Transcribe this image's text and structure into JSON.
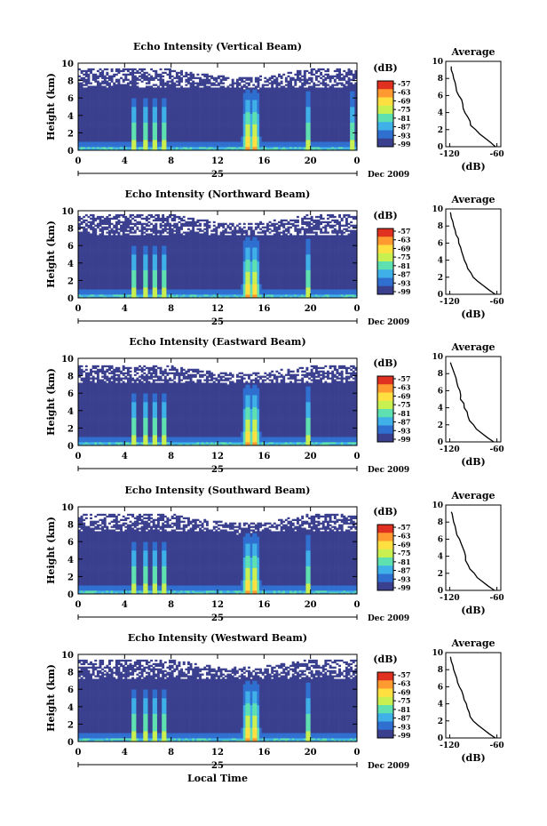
{
  "figure": {
    "xlabel_bottom": "Local Time",
    "colorbar_unit": "(dB)",
    "colorbar_ticks": [
      "-57",
      "-63",
      "-69",
      "-75",
      "-81",
      "-87",
      "-93",
      "-99"
    ],
    "colorbar_colors": [
      "#3a3f8e",
      "#2f6fd0",
      "#3fb0e8",
      "#5fe0b0",
      "#c8f050",
      "#ffe040",
      "#ff9a30",
      "#e03020"
    ],
    "date_day": "25",
    "date_label": "Dec 2009",
    "average_title": "Average",
    "average_xlabel": "(dB)"
  },
  "chart_data": [
    {
      "type": "heatmap",
      "title": "Echo Intensity (Vertical Beam)",
      "ylabel": "Height (km)",
      "xlim": [
        0,
        24
      ],
      "ylim": [
        0,
        10
      ],
      "xticks": [
        "0",
        "4",
        "8",
        "12",
        "16",
        "20",
        "0"
      ],
      "yticks": [
        "0",
        "2",
        "4",
        "6",
        "8",
        "10"
      ],
      "echo_top_km": 9.4,
      "convective_cells_hours": [
        4.8,
        5.8,
        6.6,
        7.4,
        14.6,
        15.2,
        19.8,
        23.6
      ],
      "average_profile": {
        "title": "Average",
        "xlabel": "(dB)",
        "xticks": [
          "-120",
          "-60"
        ],
        "yticks": [
          "0",
          "2",
          "4",
          "6",
          "8",
          "10"
        ],
        "height_km": [
          0,
          0.5,
          1,
          1.5,
          2,
          2.5,
          3,
          3.5,
          4,
          4.5,
          5,
          5.5,
          6,
          6.5,
          7,
          7.5,
          8,
          8.5,
          9,
          9.4
        ],
        "db": [
          -62,
          -68,
          -75,
          -82,
          -88,
          -92,
          -95,
          -98,
          -100,
          -103,
          -104,
          -105,
          -108,
          -110,
          -112,
          -113,
          -115,
          -116,
          -118,
          -118
        ]
      }
    },
    {
      "type": "heatmap",
      "title": "Echo Intensity (Northward Beam)",
      "ylabel": "Height (km)",
      "xlim": [
        0,
        24
      ],
      "ylim": [
        0,
        10
      ],
      "xticks": [
        "0",
        "4",
        "8",
        "12",
        "16",
        "20",
        "0"
      ],
      "yticks": [
        "0",
        "2",
        "4",
        "6",
        "8",
        "10"
      ],
      "echo_top_km": 9.6,
      "convective_cells_hours": [
        4.8,
        5.8,
        6.6,
        7.4,
        14.6,
        15.2,
        19.8
      ],
      "average_profile": {
        "title": "Average",
        "xlabel": "(dB)",
        "xticks": [
          "-120",
          "-60"
        ],
        "yticks": [
          "0",
          "2",
          "4",
          "6",
          "8",
          "10"
        ],
        "height_km": [
          0,
          0.5,
          1,
          1.5,
          2,
          2.5,
          3,
          3.5,
          4,
          4.5,
          5,
          5.5,
          6,
          6.5,
          7,
          7.5,
          8,
          8.5,
          9,
          9.6
        ],
        "db": [
          -62,
          -70,
          -77,
          -84,
          -90,
          -94,
          -97,
          -99,
          -101,
          -103,
          -105,
          -107,
          -109,
          -110,
          -112,
          -113,
          -115,
          -116,
          -118,
          -119
        ]
      }
    },
    {
      "type": "heatmap",
      "title": "Echo Intensity (Eastward Beam)",
      "ylabel": "Height (km)",
      "xlim": [
        0,
        24
      ],
      "ylim": [
        0,
        10
      ],
      "xticks": [
        "0",
        "4",
        "8",
        "12",
        "16",
        "20",
        "0"
      ],
      "yticks": [
        "0",
        "2",
        "4",
        "6",
        "8",
        "10"
      ],
      "echo_top_km": 9.3,
      "convective_cells_hours": [
        4.8,
        5.8,
        6.6,
        7.4,
        14.6,
        15.2,
        19.8
      ],
      "average_profile": {
        "title": "Average",
        "xlabel": "(dB)",
        "xticks": [
          "-120",
          "-60"
        ],
        "yticks": [
          "0",
          "2",
          "4",
          "6",
          "8",
          "10"
        ],
        "height_km": [
          0,
          0.5,
          1,
          1.5,
          2,
          2.5,
          3,
          3.5,
          4,
          4.5,
          5,
          5.5,
          6,
          6.5,
          7,
          7.5,
          8,
          8.5,
          9,
          9.3
        ],
        "db": [
          -64,
          -72,
          -79,
          -86,
          -91,
          -94,
          -97,
          -99,
          -101,
          -103,
          -105,
          -106,
          -108,
          -110,
          -111,
          -112,
          -114,
          -116,
          -118,
          -119
        ]
      }
    },
    {
      "type": "heatmap",
      "title": "Echo Intensity (Southward Beam)",
      "ylabel": "Height (km)",
      "xlim": [
        0,
        24
      ],
      "ylim": [
        0,
        10
      ],
      "xticks": [
        "0",
        "4",
        "8",
        "12",
        "16",
        "20",
        "0"
      ],
      "yticks": [
        "0",
        "2",
        "4",
        "6",
        "8",
        "10"
      ],
      "echo_top_km": 9.2,
      "convective_cells_hours": [
        4.8,
        5.8,
        6.6,
        7.4,
        14.6,
        15.2,
        19.8
      ],
      "average_profile": {
        "title": "Average",
        "xlabel": "(dB)",
        "xticks": [
          "-120",
          "-60"
        ],
        "yticks": [
          "0",
          "2",
          "4",
          "6",
          "8",
          "10"
        ],
        "height_km": [
          0,
          0.5,
          1,
          1.5,
          2,
          2.5,
          3,
          3.5,
          4,
          4.5,
          5,
          5.5,
          6,
          6.5,
          7,
          7.5,
          8,
          8.5,
          9,
          9.2
        ],
        "db": [
          -63,
          -71,
          -78,
          -85,
          -90,
          -94,
          -97,
          -99,
          -101,
          -102,
          -104,
          -106,
          -108,
          -110,
          -112,
          -113,
          -115,
          -116,
          -117,
          -118
        ]
      }
    },
    {
      "type": "heatmap",
      "title": "Echo Intensity (Westward Beam)",
      "ylabel": "Height (km)",
      "xlim": [
        0,
        24
      ],
      "ylim": [
        0,
        10
      ],
      "xticks": [
        "0",
        "4",
        "8",
        "12",
        "16",
        "20",
        "0"
      ],
      "yticks": [
        "0",
        "2",
        "4",
        "6",
        "8",
        "10"
      ],
      "echo_top_km": 9.5,
      "convective_cells_hours": [
        4.8,
        5.8,
        6.6,
        7.4,
        14.6,
        15.2,
        19.8
      ],
      "average_profile": {
        "title": "Average",
        "xlabel": "(dB)",
        "xticks": [
          "-120",
          "-60"
        ],
        "yticks": [
          "0",
          "2",
          "4",
          "6",
          "8",
          "10"
        ],
        "height_km": [
          0,
          0.5,
          1,
          1.5,
          2,
          2.5,
          3,
          3.5,
          4,
          4.5,
          5,
          5.5,
          6,
          6.5,
          7,
          7.5,
          8,
          8.5,
          9,
          9.5
        ],
        "db": [
          -62,
          -70,
          -77,
          -84,
          -89,
          -93,
          -96,
          -98,
          -100,
          -101,
          -103,
          -105,
          -107,
          -109,
          -111,
          -113,
          -115,
          -116,
          -118,
          -119
        ]
      }
    }
  ]
}
